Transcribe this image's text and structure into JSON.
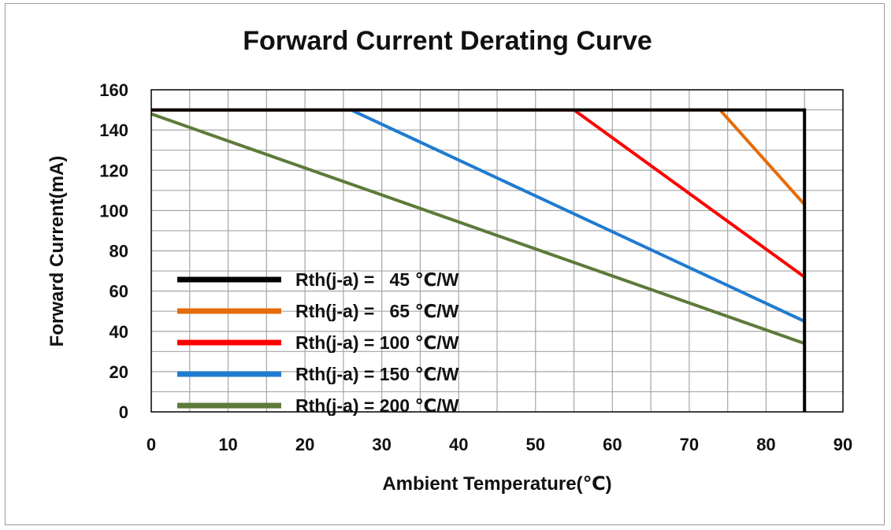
{
  "chart_data": {
    "type": "line",
    "title": "Forward Current Derating Curve",
    "xlabel": "Ambient Temperature(℃)",
    "ylabel": "Forward Current(mA)",
    "xlim": [
      0,
      90
    ],
    "ylim": [
      0,
      160
    ],
    "x_ticks": [
      "0",
      "10",
      "20",
      "30",
      "40",
      "50",
      "60",
      "70",
      "80",
      "90"
    ],
    "y_ticks": [
      "0",
      "20",
      "40",
      "60",
      "80",
      "100",
      "120",
      "140",
      "160"
    ],
    "grid": true,
    "legend_position": "bottom-left",
    "series": [
      {
        "name": "Rth(j-a) =   45 ℃/W",
        "color": "#000000",
        "x": [
          0,
          85,
          85
        ],
        "y": [
          150,
          150,
          0
        ]
      },
      {
        "name": "Rth(j-a) =   65 ℃/W",
        "color": "#E46C0A",
        "x": [
          0,
          74,
          85
        ],
        "y": [
          150,
          150,
          103
        ]
      },
      {
        "name": "Rth(j-a) = 100 ℃/W",
        "color": "#FF0000",
        "x": [
          0,
          55,
          85
        ],
        "y": [
          150,
          150,
          67
        ]
      },
      {
        "name": "Rth(j-a) = 150 ℃/W",
        "color": "#1F7BD0",
        "x": [
          0,
          26,
          85
        ],
        "y": [
          150,
          150,
          45
        ]
      },
      {
        "name": "Rth(j-a) = 200 ℃/W",
        "color": "#5E7A3A",
        "x": [
          0,
          85
        ],
        "y": [
          148,
          34
        ]
      }
    ]
  }
}
